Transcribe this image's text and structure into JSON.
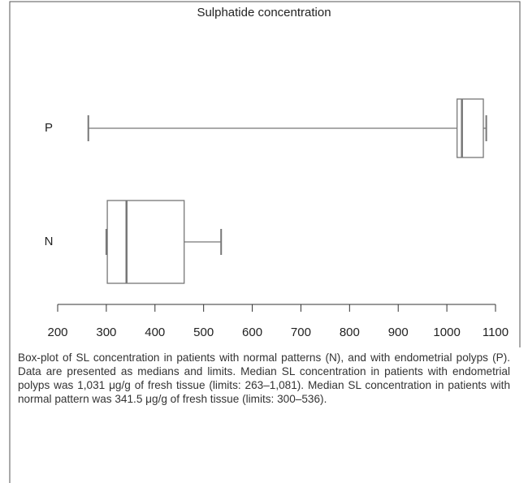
{
  "chart_data": {
    "type": "box",
    "title": "Sulphatide concentration",
    "categories": [
      "P",
      "N"
    ],
    "boxes": [
      {
        "min": 263,
        "q1": 1021,
        "median": 1031,
        "q3": 1075,
        "max": 1081
      },
      {
        "min": 300,
        "q1": 302,
        "median": 341.5,
        "q3": 460,
        "max": 536
      }
    ],
    "color": "#777777",
    "xlim": [
      200,
      1100
    ],
    "xticks": [
      200,
      300,
      400,
      500,
      600,
      700,
      800,
      900,
      1000,
      1100
    ]
  },
  "caption": "Box-plot of SL concentration in patients with normal patterns (N), and with endometrial polyps (P). Data are presented as medians and limits. Median SL concentration in patients with endometrial polyps was 1,031 μg/g of fresh tissue (limits: 263–1,081). Median SL concentration in patients with normal pattern was 341.5 μg/g of fresh tissue (limits: 300–536)."
}
